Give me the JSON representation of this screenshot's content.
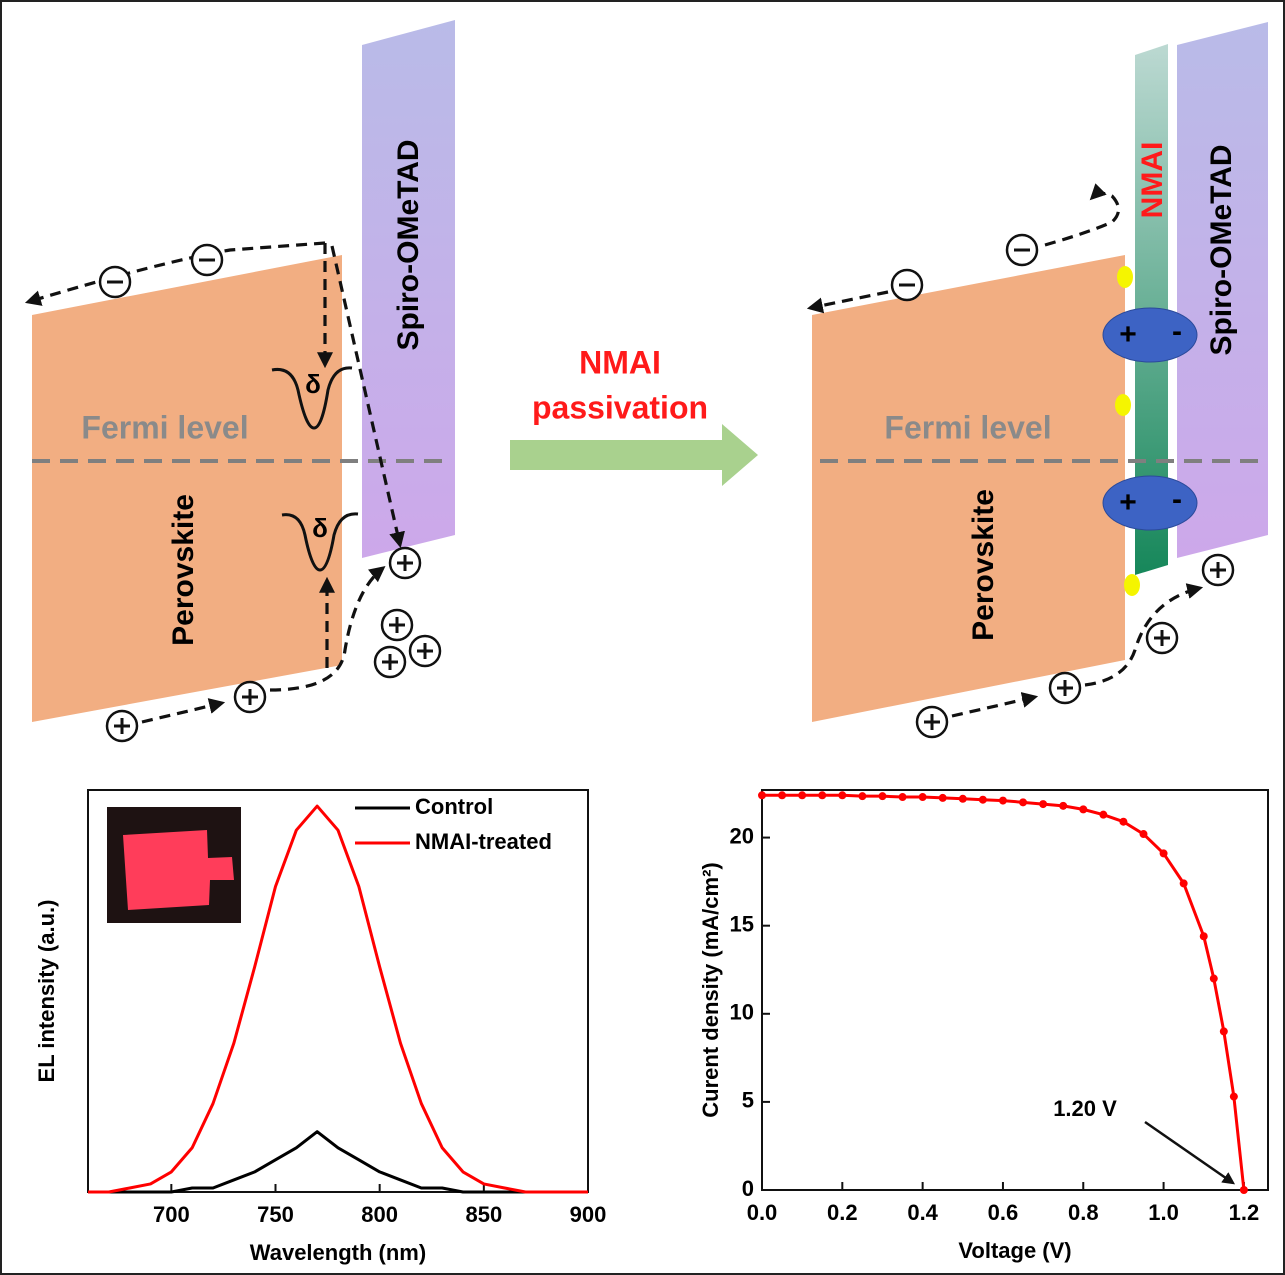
{
  "diagram": {
    "left": {
      "layer_label": "Spiro-OMeTAD",
      "fermi_label": "Fermi level",
      "absorber_label": "Perovskite",
      "trap_labels": [
        "δ",
        "δ"
      ]
    },
    "transition": {
      "label_lines": [
        "NMAI",
        "passivation"
      ]
    },
    "right": {
      "interlayer_label": "NMAI",
      "layer_label": "Spiro-OMeTAD",
      "fermi_label": "Fermi level",
      "absorber_label": "Perovskite",
      "dipole_signs": [
        "+",
        "-",
        "+",
        "-"
      ]
    }
  },
  "chart_data": [
    {
      "type": "line",
      "x_label": "Wavelength (nm)",
      "y_label": "EL intensity (a.u.)",
      "x": [
        660,
        670,
        680,
        690,
        700,
        710,
        720,
        730,
        740,
        750,
        760,
        770,
        780,
        790,
        800,
        810,
        820,
        830,
        840,
        850,
        860,
        870,
        880,
        890,
        900
      ],
      "series": [
        {
          "name": "Control",
          "color": "#000000",
          "values": [
            0,
            0,
            0,
            0,
            0,
            0.01,
            0.01,
            0.03,
            0.05,
            0.08,
            0.11,
            0.15,
            0.11,
            0.08,
            0.05,
            0.03,
            0.01,
            0.01,
            0,
            0,
            0,
            0,
            0,
            0,
            0
          ]
        },
        {
          "name": "NMAI-treated",
          "color": "#ff0000",
          "values": [
            0,
            0,
            0.01,
            0.02,
            0.05,
            0.11,
            0.22,
            0.37,
            0.56,
            0.76,
            0.9,
            0.96,
            0.9,
            0.76,
            0.56,
            0.37,
            0.22,
            0.11,
            0.05,
            0.02,
            0.01,
            0,
            0,
            0,
            0
          ]
        }
      ],
      "xlim": [
        660,
        900
      ],
      "xticks": [
        700,
        750,
        800,
        850,
        900
      ],
      "ylim": [
        0,
        1
      ],
      "legend": "upper right"
    },
    {
      "type": "line",
      "x_label": "Voltage (V)",
      "y_label": "Curent density (mA/cm²)",
      "x": [
        0,
        0.05,
        0.1,
        0.15,
        0.2,
        0.25,
        0.3,
        0.35,
        0.4,
        0.45,
        0.5,
        0.55,
        0.6,
        0.65,
        0.7,
        0.75,
        0.8,
        0.85,
        0.9,
        0.95,
        1.0,
        1.05,
        1.1,
        1.125,
        1.15,
        1.175,
        1.2
      ],
      "series": [
        {
          "color": "#ff0000",
          "markers": true,
          "values": [
            22.4,
            22.4,
            22.4,
            22.4,
            22.4,
            22.35,
            22.35,
            22.3,
            22.3,
            22.25,
            22.2,
            22.15,
            22.1,
            22.0,
            21.9,
            21.8,
            21.6,
            21.3,
            20.9,
            20.2,
            19.1,
            17.4,
            14.4,
            12.0,
            9.0,
            5.3,
            0
          ]
        }
      ],
      "xlim": [
        0,
        1.26
      ],
      "xticks": [
        {
          "value": 0,
          "label": "0.0"
        },
        0.2,
        0.4,
        0.6,
        0.8,
        {
          "value": 1,
          "label": "1.0"
        },
        1.2
      ],
      "ylim": [
        0,
        22.7
      ],
      "yticks": [
        0,
        5,
        10,
        15,
        20
      ],
      "annotation": "1.20 V"
    }
  ]
}
